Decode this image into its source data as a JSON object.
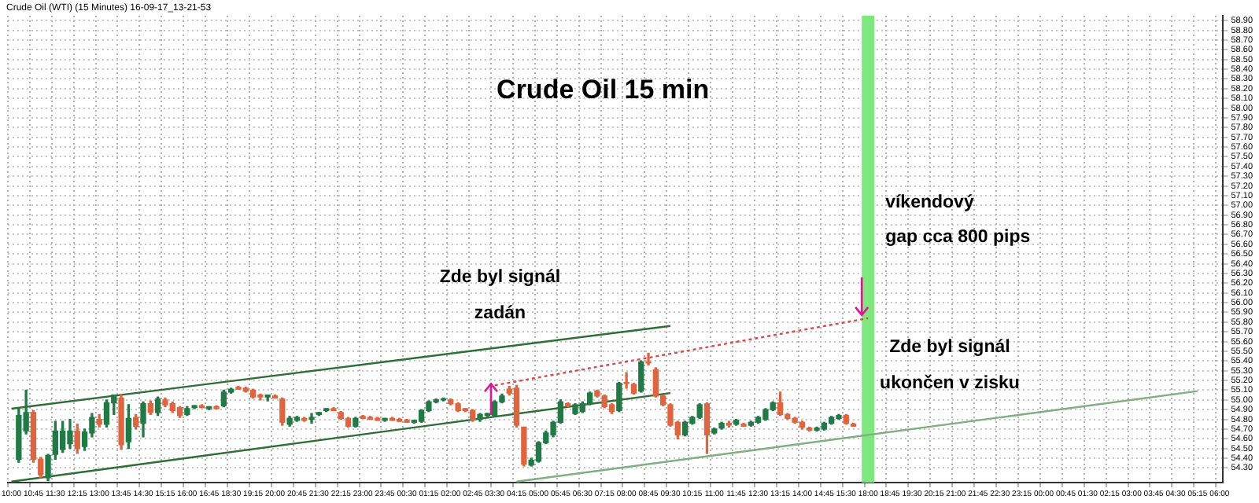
{
  "chart_data": {
    "type": "candlestick",
    "title": "Crude Oil 15 min",
    "subtitle": "Crude Oil (WTI) (15 Minutes) 16-09-17_13-21-53",
    "categories": [
      "10:00",
      null,
      null,
      "10:45",
      null,
      null,
      "11:30",
      null,
      null,
      "12:15",
      null,
      null,
      "13:00",
      null,
      null,
      "13:45",
      null,
      null,
      "14:30",
      null,
      null,
      "15:15",
      null,
      null,
      "16:00",
      null,
      null,
      "16:45",
      null,
      null,
      "18:30",
      null,
      null,
      "19:15",
      null,
      null,
      "20:00",
      null,
      null,
      "20:45",
      null,
      null,
      "21:30",
      null,
      null,
      "22:15",
      null,
      null,
      "23:00",
      null,
      null,
      "23:45",
      null,
      null,
      "00:30",
      null,
      null,
      "01:15",
      null,
      null,
      "02:00",
      null,
      null,
      "02:45",
      null,
      null,
      "03:30",
      null,
      null,
      "04:15",
      null,
      null,
      "05:00",
      null,
      null,
      "05:45",
      null,
      null,
      "06:30",
      null,
      null,
      "07:15",
      null,
      null,
      "08:00",
      null,
      null,
      "08:45",
      null,
      null,
      "09:30",
      null,
      null,
      "10:15",
      null,
      null,
      "11:00",
      null,
      null,
      "11:45",
      null,
      null,
      "12:30",
      null,
      null,
      "13:15",
      null,
      null,
      "14:00",
      null,
      null,
      "14:45",
      null,
      null,
      "15:30",
      null,
      null,
      "18:00",
      null,
      null,
      "18:45",
      null,
      null,
      "19:30",
      null,
      null,
      "20:15",
      null,
      null,
      "21:00",
      null,
      null,
      "21:45",
      null,
      null,
      "22:30",
      null,
      null,
      "23:15",
      null,
      null,
      "00:00",
      null,
      null,
      "00:45",
      null,
      null,
      "01:30",
      null,
      null,
      "02:15",
      null,
      null,
      "03:00",
      null,
      null,
      "03:45",
      null,
      null,
      "04:30",
      null,
      null,
      "05:15",
      null,
      null,
      "06:00"
    ],
    "ohlc": [
      null,
      [
        54.39,
        54.92,
        54.36,
        54.84
      ],
      [
        54.68,
        55.1,
        54.65,
        54.87
      ],
      [
        54.87,
        54.89,
        54.36,
        54.39
      ],
      [
        54.39,
        54.41,
        54.2,
        54.23
      ],
      [
        54.2,
        54.44,
        54.17,
        54.43
      ],
      [
        54.44,
        54.78,
        54.39,
        54.68
      ],
      [
        54.49,
        54.78,
        54.46,
        54.68
      ],
      [
        54.55,
        54.8,
        54.5,
        54.68
      ],
      [
        54.68,
        54.75,
        54.45,
        54.5
      ],
      [
        54.52,
        54.7,
        54.48,
        54.67
      ],
      [
        54.66,
        54.86,
        54.62,
        54.82
      ],
      [
        54.8,
        54.85,
        54.72,
        54.75
      ],
      [
        54.75,
        55.0,
        54.72,
        54.97
      ],
      [
        54.97,
        55.05,
        54.85,
        55.05
      ],
      [
        55.02,
        55.05,
        54.49,
        54.54
      ],
      [
        54.57,
        54.95,
        54.5,
        54.81
      ],
      [
        54.82,
        54.85,
        54.7,
        54.73
      ],
      [
        54.76,
        54.98,
        54.62,
        54.96
      ],
      [
        54.96,
        54.99,
        54.85,
        54.87
      ],
      [
        54.87,
        55.03,
        54.84,
        55.01
      ],
      [
        55.0,
        55.02,
        54.93,
        54.95
      ],
      [
        54.96,
        54.98,
        54.87,
        54.89
      ],
      [
        54.92,
        54.93,
        54.82,
        54.84
      ],
      [
        54.85,
        54.93,
        54.84,
        54.91
      ],
      [
        54.92,
        54.94,
        54.91,
        54.94
      ],
      [
        54.94,
        54.95,
        54.92,
        54.92
      ],
      [
        54.91,
        54.93,
        54.9,
        54.93
      ],
      [
        54.93,
        54.94,
        54.91,
        54.91
      ],
      [
        54.94,
        55.1,
        54.93,
        55.08
      ],
      [
        55.08,
        55.12,
        55.07,
        55.11
      ],
      [
        55.13,
        55.14,
        55.11,
        55.11
      ],
      [
        55.12,
        55.13,
        55.08,
        55.09
      ],
      [
        55.1,
        55.11,
        55.02,
        55.03
      ],
      [
        55.05,
        55.06,
        55.0,
        55.03
      ],
      [
        55.03,
        55.05,
        54.99,
        55.05
      ],
      [
        55.04,
        55.05,
        55.02,
        55.02
      ],
      [
        55.01,
        55.02,
        54.74,
        54.77
      ],
      [
        54.75,
        54.83,
        54.73,
        54.81
      ],
      [
        54.79,
        54.83,
        54.78,
        54.82
      ],
      [
        54.81,
        54.82,
        54.78,
        54.79
      ],
      [
        54.8,
        54.86,
        54.76,
        54.82
      ],
      [
        54.85,
        54.87,
        54.84,
        54.87
      ],
      [
        54.89,
        54.91,
        54.88,
        54.91
      ],
      [
        54.91,
        54.92,
        54.89,
        54.89
      ],
      [
        54.87,
        54.88,
        54.8,
        54.81
      ],
      [
        54.81,
        54.82,
        54.72,
        54.73
      ],
      [
        54.73,
        54.82,
        54.72,
        54.81
      ],
      [
        54.83,
        54.84,
        54.81,
        54.81
      ],
      [
        54.82,
        54.83,
        54.8,
        54.8
      ],
      [
        54.81,
        54.82,
        54.79,
        54.79
      ],
      [
        54.79,
        54.81,
        54.78,
        54.81
      ],
      [
        54.81,
        54.82,
        54.79,
        54.79
      ],
      [
        54.8,
        54.81,
        54.78,
        54.78
      ],
      [
        54.79,
        54.8,
        54.77,
        54.77
      ],
      [
        54.77,
        54.79,
        54.76,
        54.79
      ],
      [
        54.78,
        54.9,
        54.77,
        54.89
      ],
      [
        54.89,
        54.99,
        54.88,
        54.98
      ],
      [
        54.98,
        55.01,
        54.97,
        55.0
      ],
      [
        55.0,
        55.02,
        54.99,
        55.01
      ],
      [
        55.0,
        55.01,
        54.95,
        54.96
      ],
      [
        54.96,
        54.97,
        54.88,
        54.89
      ],
      [
        54.91,
        54.91,
        54.88,
        54.89
      ],
      [
        54.89,
        54.9,
        54.78,
        54.8
      ],
      [
        54.8,
        54.86,
        54.78,
        54.85
      ],
      [
        54.84,
        54.86,
        54.83,
        54.86
      ],
      [
        54.84,
        54.99,
        54.83,
        54.98
      ],
      [
        54.98,
        55.06,
        54.97,
        55.04
      ],
      [
        55.11,
        55.14,
        55.05,
        55.07
      ],
      [
        55.12,
        55.15,
        54.72,
        54.74
      ],
      [
        54.72,
        54.72,
        54.32,
        54.34
      ],
      [
        54.33,
        54.4,
        54.32,
        54.38
      ],
      [
        54.37,
        54.57,
        54.36,
        54.56
      ],
      [
        54.56,
        54.68,
        54.55,
        54.66
      ],
      [
        54.64,
        54.78,
        54.62,
        54.77
      ],
      [
        54.77,
        55.0,
        54.76,
        54.98
      ],
      [
        54.96,
        54.97,
        54.93,
        54.94
      ],
      [
        54.86,
        54.96,
        54.85,
        54.95
      ],
      [
        54.88,
        54.98,
        54.87,
        54.96
      ],
      [
        54.96,
        55.08,
        54.95,
        55.07
      ],
      [
        55.09,
        55.1,
        55.03,
        55.04
      ],
      [
        55.04,
        55.05,
        54.92,
        54.93
      ],
      [
        54.95,
        54.96,
        54.86,
        54.88
      ],
      [
        54.89,
        55.18,
        54.88,
        55.17
      ],
      [
        55.18,
        55.28,
        55.12,
        55.17
      ],
      [
        55.16,
        55.17,
        55.06,
        55.07
      ],
      [
        55.09,
        55.4,
        55.08,
        55.39
      ],
      [
        55.39,
        55.48,
        55.36,
        55.38
      ],
      [
        55.31,
        55.33,
        55.03,
        55.04
      ],
      [
        55.04,
        55.05,
        54.94,
        54.95
      ],
      [
        54.95,
        54.96,
        54.73,
        54.74
      ],
      [
        54.77,
        54.78,
        54.6,
        54.64
      ],
      [
        54.64,
        54.78,
        54.63,
        54.77
      ],
      [
        54.76,
        54.83,
        54.75,
        54.82
      ],
      [
        54.82,
        54.96,
        54.81,
        54.95
      ],
      [
        54.96,
        54.97,
        54.45,
        54.64
      ],
      [
        54.66,
        54.71,
        54.65,
        54.7
      ],
      [
        54.71,
        54.77,
        54.7,
        54.76
      ],
      [
        54.76,
        54.78,
        54.72,
        54.74
      ],
      [
        54.75,
        54.8,
        54.74,
        54.79
      ],
      [
        54.75,
        54.76,
        54.73,
        54.73
      ],
      [
        54.74,
        54.78,
        54.73,
        54.77
      ],
      [
        54.77,
        54.83,
        54.76,
        54.82
      ],
      [
        54.8,
        54.91,
        54.79,
        54.9
      ],
      [
        54.9,
        54.98,
        54.89,
        54.97
      ],
      [
        54.97,
        55.08,
        54.84,
        54.85
      ],
      [
        54.85,
        54.86,
        54.8,
        54.81
      ],
      [
        54.81,
        54.82,
        54.76,
        54.77
      ],
      [
        54.77,
        54.78,
        54.7,
        54.72
      ],
      [
        54.71,
        54.72,
        54.68,
        54.69
      ],
      [
        54.69,
        54.72,
        54.68,
        54.71
      ],
      [
        54.7,
        54.77,
        54.69,
        54.76
      ],
      [
        54.76,
        54.83,
        54.75,
        54.82
      ],
      [
        54.81,
        54.85,
        54.8,
        54.84
      ],
      [
        54.84,
        54.85,
        54.75,
        54.76
      ],
      [
        54.75,
        54.76,
        54.73,
        54.73
      ],
      null,
      null,
      null,
      null,
      null,
      null,
      null,
      null,
      null,
      null,
      null,
      null,
      null,
      null,
      null,
      null,
      null,
      null,
      null,
      null,
      null,
      null,
      null,
      null,
      null,
      null,
      null,
      null,
      null,
      null,
      null,
      null,
      null,
      null,
      null,
      null,
      null,
      null,
      null,
      null,
      null,
      null,
      null,
      null,
      null,
      null,
      null,
      null,
      null,
      null
    ],
    "colors": [
      null,
      "#1f7a45",
      "#1f7a45",
      "#e0653f",
      "#e0653f",
      "#1f7a45",
      "#1f7a45",
      "#1f7a45",
      "#1f7a45",
      "#e0653f",
      "#1f7a45",
      "#1f7a45",
      "#e0653f",
      "#1f7a45",
      "#1f7a45",
      "#e0653f",
      "#1f7a45",
      "#e0653f",
      "#1f7a45",
      "#e0653f",
      "#1f7a45",
      "#e0653f",
      "#e0653f",
      "#e0653f",
      "#1f7a45",
      "#1f7a45",
      "#e0653f",
      "#1f7a45",
      "#e0653f",
      "#1f7a45",
      "#1f7a45",
      "#e0653f",
      "#e0653f",
      "#e0653f",
      "#e0653f",
      "#1f7a45",
      "#e0653f",
      "#e0653f",
      "#1f7a45",
      "#1f7a45",
      "#e0653f",
      "#1f7a45",
      "#1f7a45",
      "#1f7a45",
      "#e0653f",
      "#e0653f",
      "#e0653f",
      "#1f7a45",
      "#e0653f",
      "#e0653f",
      "#e0653f",
      "#1f7a45",
      "#e0653f",
      "#e0653f",
      "#e0653f",
      "#1f7a45",
      "#1f7a45",
      "#1f7a45",
      "#1f7a45",
      "#1f7a45",
      "#e0653f",
      "#e0653f",
      "#e0653f",
      "#e0653f",
      "#1f7a45",
      "#1f7a45",
      "#1f7a45",
      "#1f7a45",
      "#e0653f",
      "#e0653f",
      "#e0653f",
      "#1f7a45",
      "#1f7a45",
      "#1f7a45",
      "#1f7a45",
      "#1f7a45",
      "#e0653f",
      "#1f7a45",
      "#1f7a45",
      "#1f7a45",
      "#e0653f",
      "#e0653f",
      "#e0653f",
      "#1f7a45",
      "#e0653f",
      "#e0653f",
      "#1f7a45",
      "#e0653f",
      "#e0653f",
      "#e0653f",
      "#e0653f",
      "#e0653f",
      "#1f7a45",
      "#1f7a45",
      "#1f7a45",
      "#e0653f",
      "#1f7a45",
      "#1f7a45",
      "#e0653f",
      "#1f7a45",
      "#e0653f",
      "#1f7a45",
      "#1f7a45",
      "#1f7a45",
      "#1f7a45",
      "#e0653f",
      "#e0653f",
      "#e0653f",
      "#e0653f",
      "#e0653f",
      "#1f7a45",
      "#1f7a45",
      "#1f7a45",
      "#1f7a45",
      "#e0653f",
      "#e0653f",
      null,
      null,
      null,
      null,
      null,
      null,
      null,
      null,
      null,
      null,
      null,
      null,
      null,
      null,
      null,
      null,
      null,
      null,
      null,
      null,
      null,
      null,
      null,
      null,
      null,
      null,
      null,
      null,
      null,
      null,
      null,
      null,
      null,
      null,
      null,
      null,
      null,
      null,
      null,
      null,
      null,
      null,
      null,
      null,
      null,
      null,
      null,
      null,
      null,
      null
    ],
    "series": [
      {
        "type": "line",
        "x": [
          "10:00",
          "09:30"
        ],
        "values": [
          54.91,
          55.76
        ],
        "color": "#2e6e35"
      },
      {
        "type": "line",
        "x": [
          "10:00",
          "09:30"
        ],
        "values": [
          54.16,
          55.07
        ],
        "color": "#2e6e35"
      },
      {
        "type": "line",
        "x": [
          "04:15",
          "05:15"
        ],
        "values": [
          54.16,
          55.09
        ],
        "color": "#7fae7f"
      },
      {
        "type": "line",
        "x": [
          "03:30",
          "18:00"
        ],
        "values": [
          55.15,
          55.84
        ],
        "color": "#d84a4a",
        "line_style": "dotted"
      }
    ],
    "ylim": [
      54.15,
      58.95
    ],
    "yticks": [
      {
        "value": 54.3,
        "label": "54.30"
      },
      {
        "value": 54.4,
        "label": "54.40"
      },
      {
        "value": 54.5,
        "label": "54.50"
      },
      {
        "value": 54.6,
        "label": "54.60"
      },
      {
        "value": 54.7,
        "label": "54.70"
      },
      {
        "value": 54.8,
        "label": "54.80"
      },
      {
        "value": 54.9,
        "label": "54.90"
      },
      {
        "value": 55.0,
        "label": "55.00"
      },
      {
        "value": 55.1,
        "label": "55.10"
      },
      {
        "value": 55.2,
        "label": "55.20"
      },
      {
        "value": 55.3,
        "label": "55.30"
      },
      {
        "value": 55.4,
        "label": "55.40"
      },
      {
        "value": 55.5,
        "label": "55.50"
      },
      {
        "value": 55.6,
        "label": "55.60"
      },
      {
        "value": 55.7,
        "label": "55.70"
      },
      {
        "value": 55.8,
        "label": "55.80"
      },
      {
        "value": 55.9,
        "label": "55.90"
      },
      {
        "value": 56.0,
        "label": "56.00"
      },
      {
        "value": 56.1,
        "label": "56.10"
      },
      {
        "value": 56.2,
        "label": "56.20"
      },
      {
        "value": 56.3,
        "label": "56.30"
      },
      {
        "value": 56.4,
        "label": "56.40"
      },
      {
        "value": 56.5,
        "label": "56.50"
      },
      {
        "value": 56.6,
        "label": "56.60"
      },
      {
        "value": 56.7,
        "label": "56.70"
      },
      {
        "value": 56.8,
        "label": "56.80"
      },
      {
        "value": 56.9,
        "label": "56.90"
      },
      {
        "value": 57.0,
        "label": "57.00"
      },
      {
        "value": 57.1,
        "label": "57.10"
      },
      {
        "value": 57.2,
        "label": "57.20"
      },
      {
        "value": 57.3,
        "label": "57.30"
      },
      {
        "value": 57.4,
        "label": "57.40"
      },
      {
        "value": 57.5,
        "label": "57.50"
      },
      {
        "value": 57.6,
        "label": "57.60"
      },
      {
        "value": 57.7,
        "label": "57.70"
      },
      {
        "value": 57.8,
        "label": "57.80"
      },
      {
        "value": 57.9,
        "label": "57.90"
      },
      {
        "value": 58.0,
        "label": "58.00"
      },
      {
        "value": 58.1,
        "label": "58.10"
      },
      {
        "value": 58.2,
        "label": "58.20"
      },
      {
        "value": 58.3,
        "label": "58.30"
      },
      {
        "value": 58.4,
        "label": "58.40"
      },
      {
        "value": 58.5,
        "label": "58.50"
      },
      {
        "value": 58.6,
        "label": "58.60"
      },
      {
        "value": 58.7,
        "label": "58.70"
      },
      {
        "value": 58.8,
        "label": "58.80"
      },
      {
        "value": 58.9,
        "label": "58.90"
      }
    ],
    "ref_lines": [
      {
        "axis": "x",
        "value": "18:00",
        "label": "víkendový\ngap cca 800 pips",
        "color": "#7ee87e"
      }
    ],
    "annotations": [
      "Zde byl signál\nzadán",
      "Zde byl signál\nukončen v zisku"
    ],
    "grid": true,
    "legend": false
  }
}
